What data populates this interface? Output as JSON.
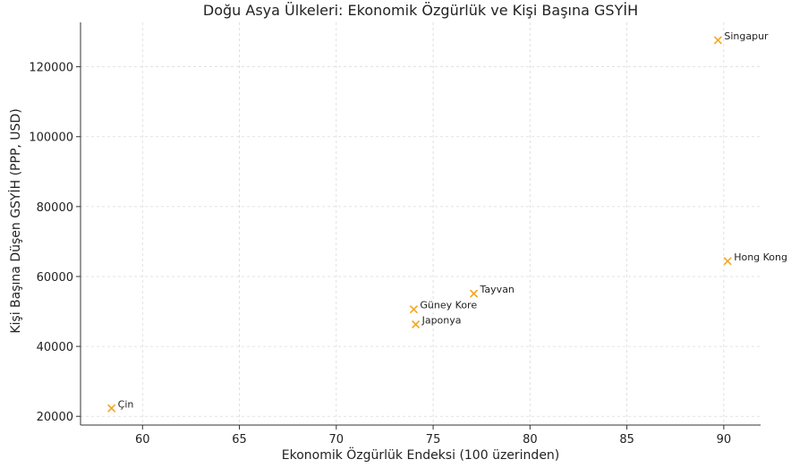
{
  "chart_data": {
    "type": "scatter",
    "title": "Doğu Asya Ülkeleri: Ekonomik Özgürlük ve Kişi Başına GSYİH",
    "xlabel": "Ekonomik Özgürlük Endeksi (100 üzerinden)",
    "ylabel": "Kişi Başına Düşen GSYİH (PPP, USD)",
    "xlim": [
      56.8,
      91.9
    ],
    "ylim": [
      17500,
      132700
    ],
    "xticks": [
      60,
      65,
      70,
      75,
      80,
      85,
      90
    ],
    "yticks": [
      20000,
      40000,
      60000,
      80000,
      100000,
      120000
    ],
    "grid": true,
    "marker": "x",
    "color": "#F5A623",
    "points": [
      {
        "label": "Singapur",
        "x": 89.7,
        "y": 127600
      },
      {
        "label": "Hong Kong",
        "x": 90.2,
        "y": 64400
      },
      {
        "label": "Tayvan",
        "x": 77.1,
        "y": 55100
      },
      {
        "label": "Güney Kore",
        "x": 74.0,
        "y": 50600
      },
      {
        "label": "Japonya",
        "x": 74.1,
        "y": 46300
      },
      {
        "label": "Çin",
        "x": 58.4,
        "y": 22300
      }
    ]
  }
}
